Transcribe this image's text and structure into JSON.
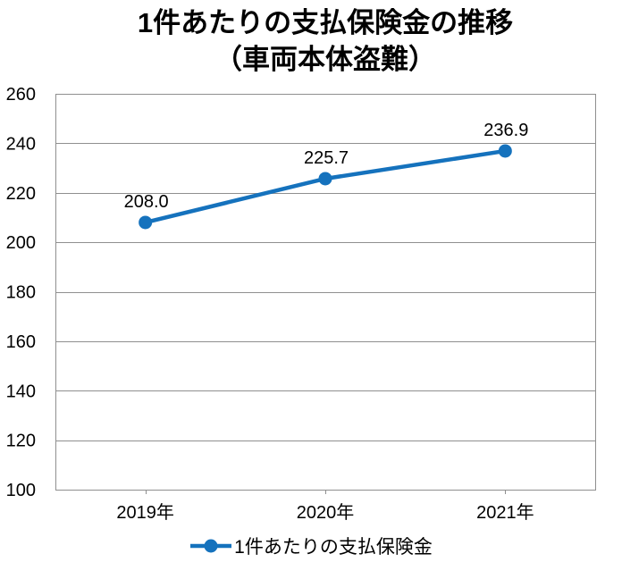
{
  "title": {
    "line1": "1件あたりの支払保険金の推移",
    "line2": "（車両本体盗難）"
  },
  "chart_data": {
    "type": "line",
    "title": "1件あたりの支払保険金の推移（車両本体盗難）",
    "categories": [
      "2019年",
      "2020年",
      "2021年"
    ],
    "series": [
      {
        "name": "1件あたりの支払保険金",
        "values": [
          208.0,
          225.7,
          236.9
        ]
      }
    ],
    "data_labels": [
      "208.0",
      "225.7",
      "236.9"
    ],
    "xlabel": "",
    "ylabel": "",
    "ylim": [
      100,
      260
    ],
    "yticks": [
      100,
      120,
      140,
      160,
      180,
      200,
      220,
      240,
      260
    ],
    "grid": true,
    "legend_position": "bottom",
    "colors": {
      "line": "#1572BD",
      "marker": "#1572BD",
      "gridline": "#8F8F8F",
      "border": "#8F8F8F",
      "text": "#000000"
    }
  },
  "legend": {
    "label": "1件あたりの支払保険金"
  }
}
